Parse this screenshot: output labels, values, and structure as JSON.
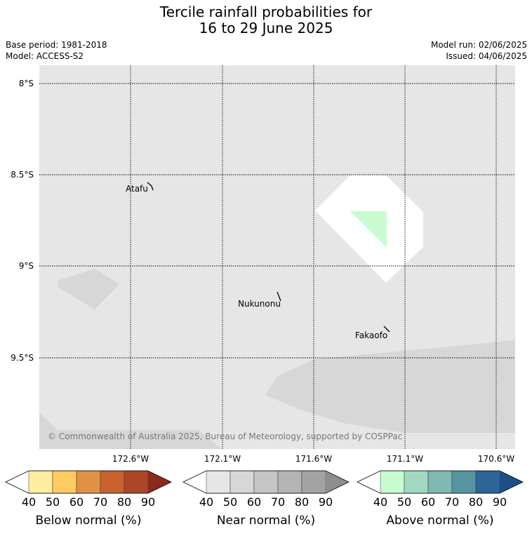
{
  "title_line1": "Tercile rainfall probabilities for",
  "title_line2": "16 to 29 June 2025",
  "base_period": "Base period: 1981-2018",
  "model": "Model: ACCESS-S2",
  "model_run": "Model run: 02/06/2025",
  "issued": "Issued: 04/06/2025",
  "copyright": "© Commonwealth of Australia 2025, Bureau of Meteorology, supported by COSPPac",
  "lat_labels": [
    "8°S",
    "8.5°S",
    "9°S",
    "9.5°S"
  ],
  "lon_labels": [
    "172.6°W",
    "172.1°W",
    "171.6°W",
    "171.1°W",
    "170.6°W"
  ],
  "places": [
    "Atafu",
    "Nukunonu",
    "Fakaofo"
  ],
  "colorbars": [
    {
      "title": "Below normal (%)",
      "ticks": [
        "40",
        "50",
        "60",
        "70",
        "80",
        "90"
      ],
      "colors": [
        "#ffffff",
        "#feeda0",
        "#fdcb62",
        "#e09244",
        "#c9612e",
        "#ad4527",
        "#8b2a1d"
      ]
    },
    {
      "title": "Near normal (%)",
      "ticks": [
        "40",
        "50",
        "60",
        "70",
        "80",
        "90"
      ],
      "colors": [
        "#ffffff",
        "#e6e6e6",
        "#d7d7d7",
        "#c6c6c6",
        "#b4b4b4",
        "#a3a3a3",
        "#8e8e8e"
      ]
    },
    {
      "title": "Above normal (%)",
      "ticks": [
        "40",
        "50",
        "60",
        "70",
        "80",
        "90"
      ],
      "colors": [
        "#ffffff",
        "#c8fcd0",
        "#a3d9c0",
        "#80b8b2",
        "#5894a0",
        "#2e6598",
        "#1c4f87"
      ]
    }
  ],
  "map_colors": {
    "background": "#e6e6e6",
    "near_normal_50": "#d7d7d7",
    "no_signal": "#ffffff",
    "above_normal_40": "#c8fcd0"
  }
}
